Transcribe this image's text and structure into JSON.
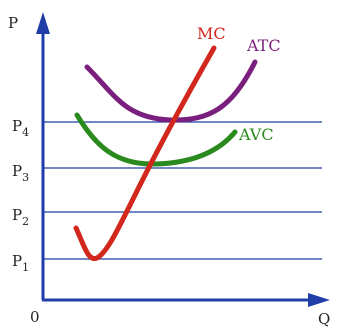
{
  "axes": {
    "y_label": "P",
    "x_label": "Q",
    "origin_label": "0",
    "axis_color": "#1f3ea8"
  },
  "price_levels": [
    {
      "label": "P",
      "sub": "4"
    },
    {
      "label": "P",
      "sub": "3"
    },
    {
      "label": "P",
      "sub": "2"
    },
    {
      "label": "P",
      "sub": "1"
    }
  ],
  "curves": {
    "mc": {
      "label": "MC",
      "color": "#d2271d"
    },
    "atc": {
      "label": "ATC",
      "color": "#7b1f7e"
    },
    "avc": {
      "label": "AVC",
      "color": "#2a8a1e"
    }
  },
  "line_color": "#1f3ea8"
}
